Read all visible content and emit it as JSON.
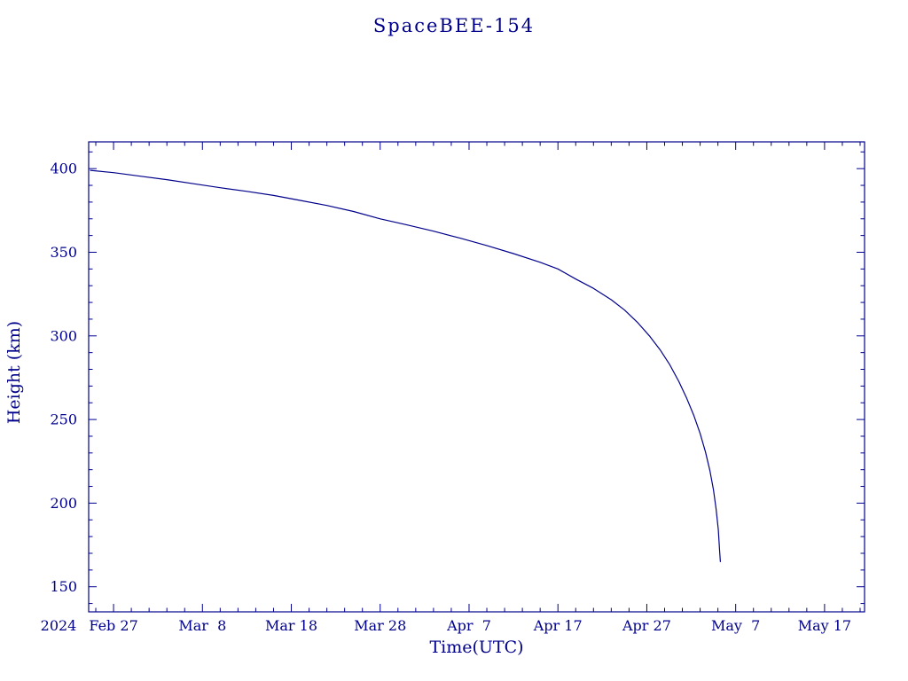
{
  "title": "SpaceBEE-154",
  "colors": {
    "ink": "#00008b",
    "background": "#ffffff"
  },
  "chart_data": {
    "type": "line",
    "title": "SpaceBEE-154",
    "xlabel": "Time(UTC)",
    "ylabel": "Height (km)",
    "era_label": "2024",
    "x_unit": "day_of_year_2024",
    "xlim": [
      55.2,
      142.5
    ],
    "ylim": [
      135,
      416
    ],
    "grid": false,
    "legend": "none",
    "y_ticks": [
      150,
      200,
      250,
      300,
      350,
      400
    ],
    "y_minor_step": 10,
    "x_minor_step": 2,
    "x_ticks": [
      {
        "doy": 58,
        "label": "Feb 27"
      },
      {
        "doy": 68,
        "label": "Mar  8"
      },
      {
        "doy": 78,
        "label": "Mar 18"
      },
      {
        "doy": 88,
        "label": "Mar 28"
      },
      {
        "doy": 98,
        "label": "Apr  7"
      },
      {
        "doy": 108,
        "label": "Apr 17"
      },
      {
        "doy": 118,
        "label": "Apr 27"
      },
      {
        "doy": 128,
        "label": "May  7"
      },
      {
        "doy": 138,
        "label": "May 17"
      }
    ],
    "series": [
      {
        "name": "Height (km)",
        "color": "#00008b",
        "points": [
          [
            55.4,
            399.0
          ],
          [
            58,
            397.6
          ],
          [
            61,
            395.5
          ],
          [
            64,
            393.4
          ],
          [
            67,
            391.0
          ],
          [
            70,
            388.6
          ],
          [
            73,
            386.4
          ],
          [
            76,
            384.0
          ],
          [
            79,
            381.0
          ],
          [
            82,
            378.0
          ],
          [
            85,
            374.4
          ],
          [
            88,
            370.0
          ],
          [
            91,
            366.4
          ],
          [
            94,
            362.6
          ],
          [
            97,
            358.4
          ],
          [
            100,
            354.0
          ],
          [
            103,
            349.2
          ],
          [
            106,
            344.0
          ],
          [
            108,
            340.0
          ],
          [
            110,
            334.0
          ],
          [
            112,
            328.4
          ],
          [
            114,
            321.6
          ],
          [
            115.5,
            315.4
          ],
          [
            117,
            307.8
          ],
          [
            118.3,
            300.0
          ],
          [
            119.5,
            291.6
          ],
          [
            120.6,
            282.6
          ],
          [
            121.6,
            272.8
          ],
          [
            122.5,
            262.6
          ],
          [
            123.3,
            252.2
          ],
          [
            124.0,
            241.6
          ],
          [
            124.6,
            230.6
          ],
          [
            125.1,
            219.4
          ],
          [
            125.5,
            208.0
          ],
          [
            125.8,
            196.4
          ],
          [
            126.05,
            184.0
          ],
          [
            126.2,
            171.0
          ],
          [
            126.28,
            165.0
          ]
        ]
      }
    ]
  }
}
